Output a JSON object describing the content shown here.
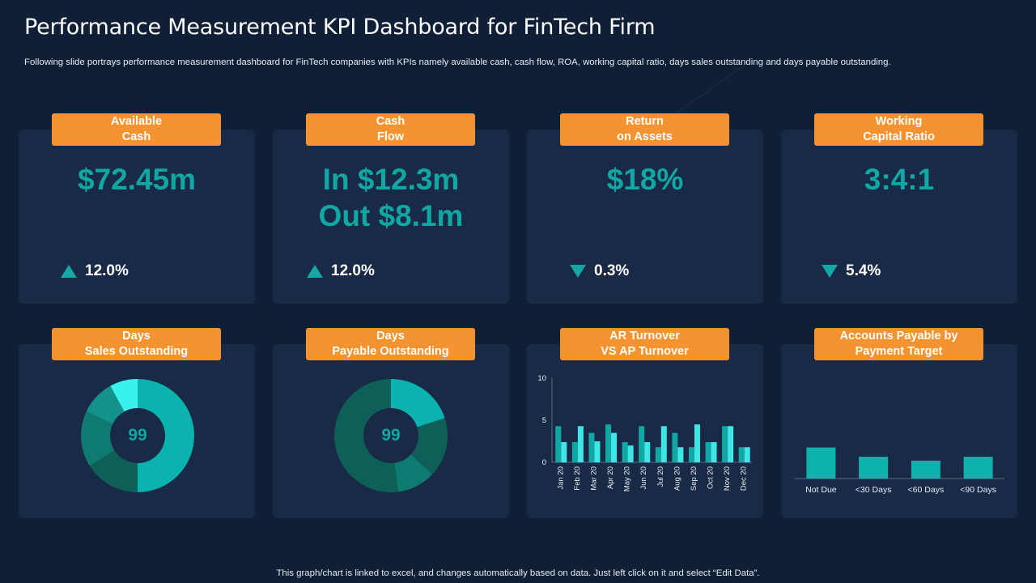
{
  "title": "Performance Measurement KPI Dashboard for FinTech Firm",
  "subtitle": "Following slide portrays performance measurement dashboard for FinTech companies with KPIs namely available cash, cash flow, ROA,  working capital ratio, days sales outstanding and days payable outstanding.",
  "footer": "This graph/chart is linked to excel,  and changes automatically based on data. Just left click on it and select “Edit Data”.",
  "colors": {
    "accent": "#f59331",
    "teal": "#11a7a4",
    "card": "#182a45",
    "background": "#0f1f35"
  },
  "kpis": [
    {
      "label_line1": "Available",
      "label_line2": "Cash",
      "value_line1": "$72.45m",
      "value_line2": "",
      "delta": "12.0%",
      "direction": "up",
      "icon": "triangle-up-icon"
    },
    {
      "label_line1": "Cash",
      "label_line2": "Flow",
      "value_line1": "In $12.3m",
      "value_line2": "Out $8.1m",
      "delta": "12.0%",
      "direction": "up",
      "icon": "triangle-up-icon"
    },
    {
      "label_line1": "Return",
      "label_line2": "on Assets",
      "value_line1": "$18%",
      "value_line2": "",
      "delta": "0.3%",
      "direction": "down",
      "icon": "triangle-down-icon"
    },
    {
      "label_line1": "Working",
      "label_line2": "Capital Ratio",
      "value_line1": "3:4:1",
      "value_line2": "",
      "delta": "5.4%",
      "direction": "down",
      "icon": "triangle-down-icon"
    }
  ],
  "bottom_labels": [
    {
      "line1": "Days",
      "line2": "Sales Outstanding"
    },
    {
      "line1": "Days",
      "line2": "Payable Outstanding"
    },
    {
      "line1": "AR Turnover",
      "line2": "VS AP Turnover"
    },
    {
      "line1": "Accounts Payable by",
      "line2": "Payment Target"
    }
  ],
  "chart_data": [
    {
      "type": "pie",
      "title": "Days Sales Outstanding",
      "center_label": "99",
      "values": [
        50,
        16,
        16,
        10,
        8
      ],
      "colors": [
        "#0ab3ad",
        "#0d5f57",
        "#0f7a70",
        "#14918a",
        "#38f2ee"
      ]
    },
    {
      "type": "pie",
      "title": "Days Payable Outstanding",
      "center_label": "99",
      "values": [
        20,
        17,
        11,
        52
      ],
      "colors": [
        "#0ab3ad",
        "#0d5f57",
        "#0f7a70",
        "#0d5f57"
      ]
    },
    {
      "type": "bar",
      "title": "AR Turnover VS AP Turnover",
      "categories": [
        "Jan 20",
        "Feb 20",
        "Mar 20",
        "Apr 20",
        "May 20",
        "Jun 20",
        "Jul 20",
        "Aug 20",
        "Sep 20",
        "Oct 20",
        "Nov 20",
        "Dec 20"
      ],
      "series": [
        {
          "name": "AR Turnover",
          "color": "#11a7a4",
          "values": [
            4.3,
            2.4,
            3.5,
            4.5,
            2.4,
            4.3,
            1.8,
            3.5,
            1.8,
            2.4,
            4.3,
            1.8
          ]
        },
        {
          "name": "AP Turnover",
          "color": "#3fe6e6",
          "values": [
            2.4,
            4.3,
            2.5,
            3.5,
            2,
            2.4,
            4.3,
            1.8,
            4.5,
            2.4,
            4.3,
            1.8
          ]
        }
      ],
      "yticks": [
        0,
        5,
        10
      ],
      "ylim": [
        0,
        10
      ]
    },
    {
      "type": "bar",
      "title": "Accounts Payable by Payment Target",
      "categories": [
        "Not Due",
        "<30 Days",
        "<60 Days",
        "<90 Days"
      ],
      "values": [
        4,
        2.8,
        2.3,
        2.8
      ],
      "color": "#0cb3ad",
      "ylim": [
        0,
        10
      ]
    }
  ]
}
